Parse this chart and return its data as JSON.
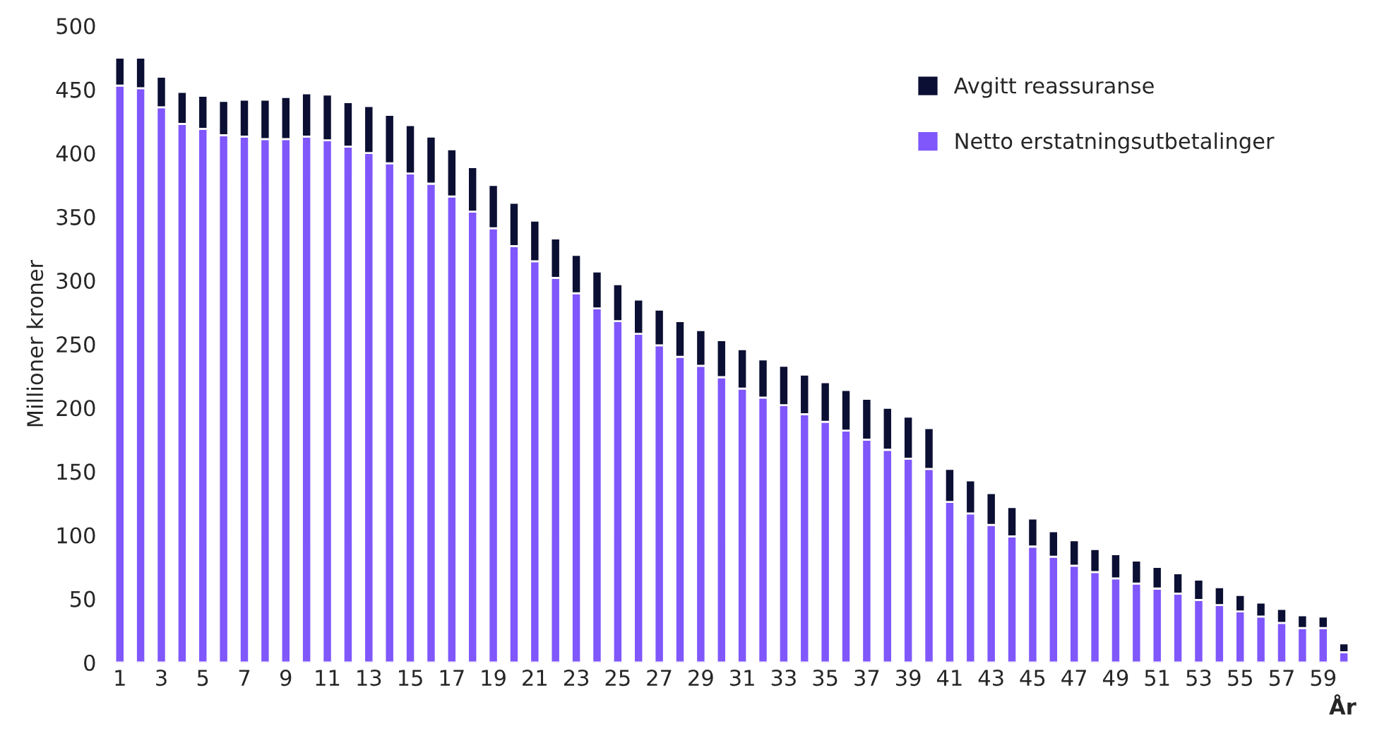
{
  "chart_data": {
    "type": "bar",
    "stacked": true,
    "ylabel": "Millioner kroner",
    "xlabel": "År",
    "categories": [
      "1",
      null,
      "3",
      null,
      "5",
      null,
      "7",
      null,
      "9",
      null,
      "11",
      null,
      "13",
      null,
      "15",
      null,
      "17",
      null,
      "19",
      null,
      "21",
      null,
      "23",
      null,
      "25",
      null,
      "27",
      null,
      "29",
      null,
      "31",
      null,
      "33",
      null,
      "35",
      null,
      "37",
      null,
      "39",
      null,
      "41",
      null,
      "43",
      null,
      "45",
      null,
      "47",
      null,
      "49",
      null,
      "51",
      null,
      "53",
      null,
      "55",
      null,
      "57",
      null,
      "59",
      null
    ],
    "series": [
      {
        "name": "Netto erstatningsutbetalinger",
        "color": "#7f57fb",
        "values": [
          453,
          451,
          436,
          423,
          419,
          414,
          413,
          411,
          411,
          413,
          410,
          405,
          400,
          392,
          384,
          376,
          366,
          354,
          341,
          327,
          315,
          302,
          290,
          278,
          268,
          258,
          249,
          240,
          233,
          224,
          215,
          208,
          202,
          195,
          189,
          182,
          175,
          167,
          160,
          152,
          126,
          117,
          108,
          99,
          91,
          83,
          76,
          71,
          66,
          62,
          58,
          54,
          49,
          45,
          40,
          36,
          31,
          27,
          27,
          8
        ]
      },
      {
        "name": "Avgitt reassuranse",
        "color": "#0b0f33",
        "values": [
          22,
          24,
          24,
          25,
          26,
          27,
          29,
          31,
          33,
          34,
          36,
          35,
          37,
          38,
          38,
          37,
          37,
          35,
          34,
          34,
          32,
          31,
          30,
          29,
          29,
          27,
          28,
          28,
          28,
          29,
          31,
          30,
          31,
          31,
          31,
          32,
          32,
          33,
          33,
          32,
          26,
          26,
          25,
          23,
          22,
          20,
          20,
          18,
          19,
          18,
          17,
          16,
          16,
          14,
          13,
          11,
          11,
          10,
          9,
          7
        ]
      }
    ],
    "ylim": [
      0,
      500
    ],
    "yticks": [
      0,
      50,
      100,
      150,
      200,
      250,
      300,
      350,
      400,
      450,
      500
    ],
    "grid": false,
    "legend": "top right"
  }
}
